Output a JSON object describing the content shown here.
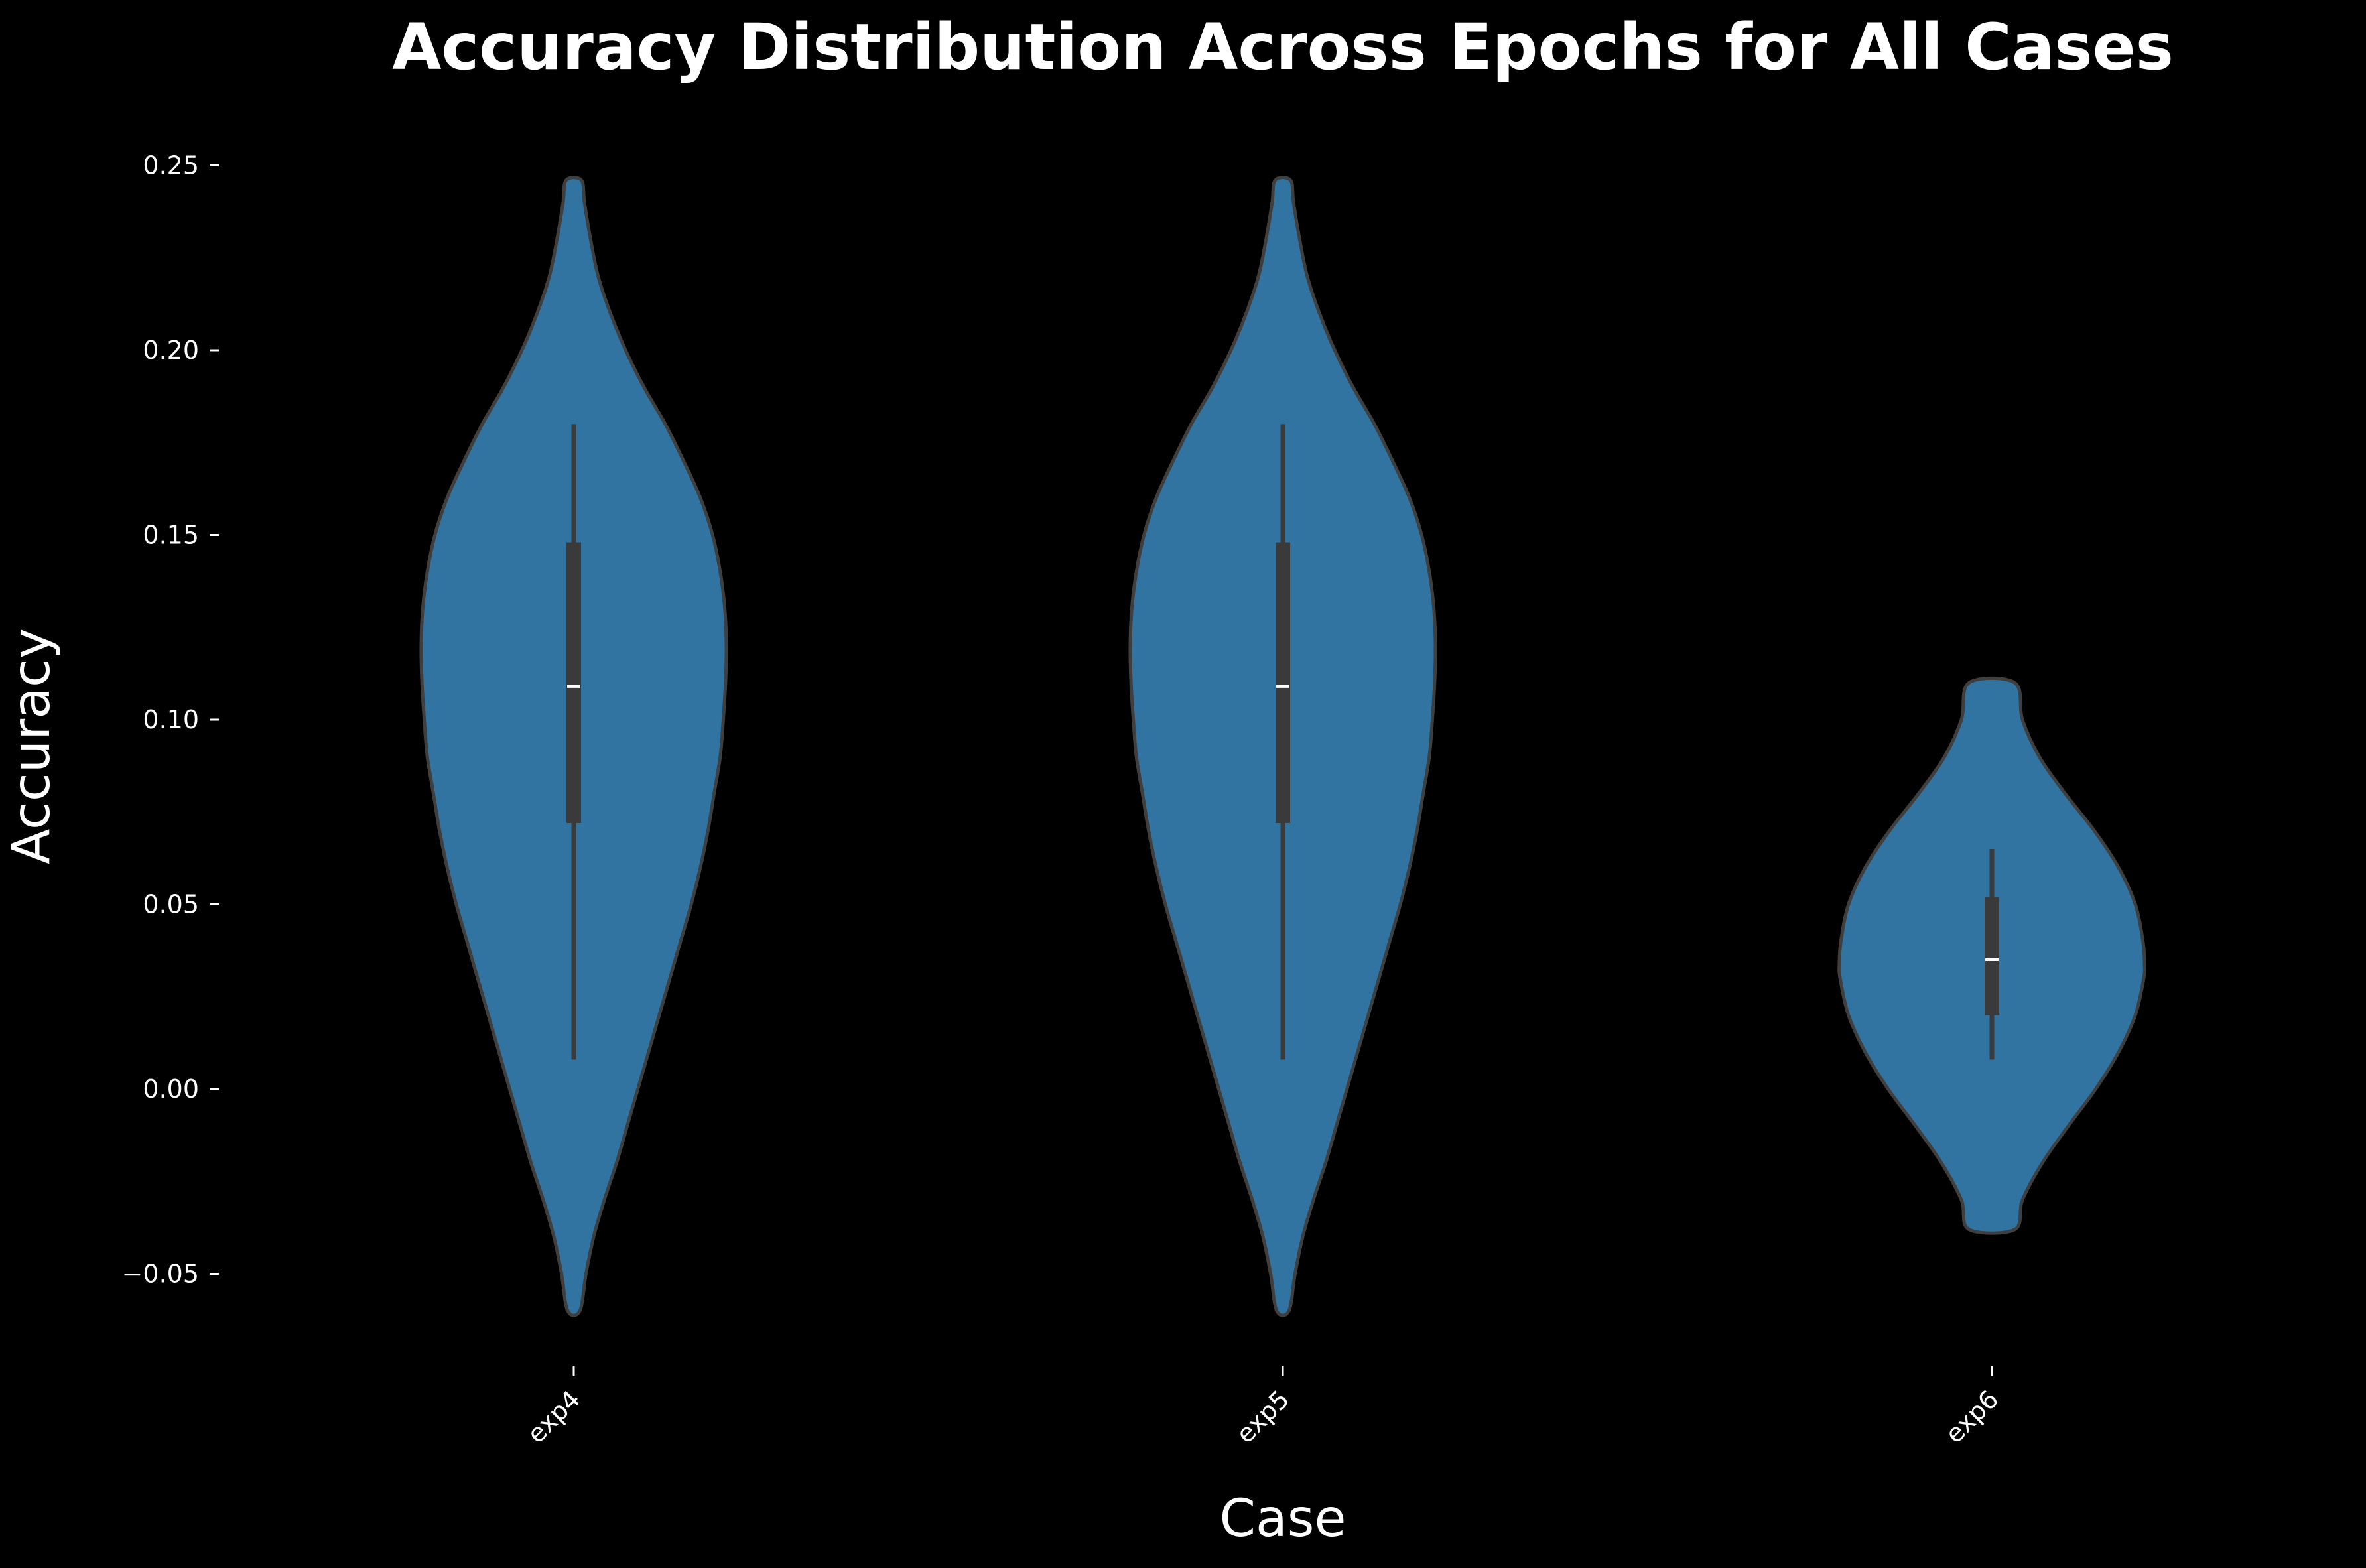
{
  "chart_data": {
    "type": "violin",
    "title": "Accuracy Distribution Across Epochs for All Cases",
    "xlabel": "Case",
    "ylabel": "Accuracy",
    "categories": [
      "exp4",
      "exp5",
      "exp6"
    ],
    "ylim": [
      -0.075,
      0.255
    ],
    "yticks": [
      -0.05,
      0.0,
      0.05,
      0.1,
      0.15,
      0.2,
      0.25
    ],
    "ytick_labels": [
      "−0.05",
      "0.00",
      "0.05",
      "0.10",
      "0.15",
      "0.20",
      "0.25"
    ],
    "grid": false,
    "colors": {
      "background": "#000000",
      "violin_fill": "#3274a1",
      "violin_edge": "#3f3f3f",
      "box": "#3a3a3a",
      "median": "#ffffff",
      "text": "#ffffff"
    },
    "violins": [
      {
        "case": "exp4",
        "min": 0.008,
        "q1": 0.072,
        "median": 0.109,
        "q3": 0.148,
        "max": 0.18,
        "kde_range": [
          -0.06,
          0.246
        ],
        "density_profile": [
          [
            -0.06,
            0.04
          ],
          [
            -0.05,
            0.08
          ],
          [
            -0.04,
            0.13
          ],
          [
            -0.03,
            0.2
          ],
          [
            -0.02,
            0.28
          ],
          [
            -0.01,
            0.35
          ],
          [
            0.0,
            0.42
          ],
          [
            0.01,
            0.49
          ],
          [
            0.02,
            0.56
          ],
          [
            0.03,
            0.63
          ],
          [
            0.04,
            0.7
          ],
          [
            0.05,
            0.77
          ],
          [
            0.06,
            0.83
          ],
          [
            0.07,
            0.88
          ],
          [
            0.08,
            0.92
          ],
          [
            0.09,
            0.96
          ],
          [
            0.1,
            0.98
          ],
          [
            0.11,
            0.995
          ],
          [
            0.12,
            1.0
          ],
          [
            0.13,
            0.99
          ],
          [
            0.14,
            0.96
          ],
          [
            0.15,
            0.91
          ],
          [
            0.16,
            0.83
          ],
          [
            0.17,
            0.72
          ],
          [
            0.18,
            0.6
          ],
          [
            0.19,
            0.46
          ],
          [
            0.2,
            0.34
          ],
          [
            0.21,
            0.24
          ],
          [
            0.22,
            0.16
          ],
          [
            0.23,
            0.11
          ],
          [
            0.24,
            0.07
          ],
          [
            0.246,
            0.05
          ]
        ]
      },
      {
        "case": "exp5",
        "min": 0.008,
        "q1": 0.072,
        "median": 0.109,
        "q3": 0.148,
        "max": 0.18,
        "kde_range": [
          -0.06,
          0.246
        ],
        "density_profile": [
          [
            -0.06,
            0.04
          ],
          [
            -0.05,
            0.08
          ],
          [
            -0.04,
            0.13
          ],
          [
            -0.03,
            0.2
          ],
          [
            -0.02,
            0.28
          ],
          [
            -0.01,
            0.35
          ],
          [
            0.0,
            0.42
          ],
          [
            0.01,
            0.49
          ],
          [
            0.02,
            0.56
          ],
          [
            0.03,
            0.63
          ],
          [
            0.04,
            0.7
          ],
          [
            0.05,
            0.77
          ],
          [
            0.06,
            0.83
          ],
          [
            0.07,
            0.88
          ],
          [
            0.08,
            0.92
          ],
          [
            0.09,
            0.96
          ],
          [
            0.1,
            0.98
          ],
          [
            0.11,
            0.995
          ],
          [
            0.12,
            1.0
          ],
          [
            0.13,
            0.99
          ],
          [
            0.14,
            0.96
          ],
          [
            0.15,
            0.91
          ],
          [
            0.16,
            0.83
          ],
          [
            0.17,
            0.72
          ],
          [
            0.18,
            0.6
          ],
          [
            0.19,
            0.46
          ],
          [
            0.2,
            0.34
          ],
          [
            0.21,
            0.24
          ],
          [
            0.22,
            0.16
          ],
          [
            0.23,
            0.11
          ],
          [
            0.24,
            0.07
          ],
          [
            0.246,
            0.05
          ]
        ]
      },
      {
        "case": "exp6",
        "min": 0.008,
        "q1": 0.02,
        "median": 0.035,
        "q3": 0.052,
        "max": 0.065,
        "kde_range": [
          -0.038,
          0.11
        ],
        "density_profile": [
          [
            -0.038,
            0.15
          ],
          [
            -0.03,
            0.2
          ],
          [
            -0.02,
            0.33
          ],
          [
            -0.01,
            0.5
          ],
          [
            0.0,
            0.68
          ],
          [
            0.01,
            0.83
          ],
          [
            0.02,
            0.94
          ],
          [
            0.03,
            0.995
          ],
          [
            0.034,
            1.0
          ],
          [
            0.04,
            0.99
          ],
          [
            0.05,
            0.94
          ],
          [
            0.06,
            0.83
          ],
          [
            0.07,
            0.67
          ],
          [
            0.08,
            0.48
          ],
          [
            0.09,
            0.31
          ],
          [
            0.1,
            0.2
          ],
          [
            0.11,
            0.15
          ]
        ]
      }
    ]
  }
}
